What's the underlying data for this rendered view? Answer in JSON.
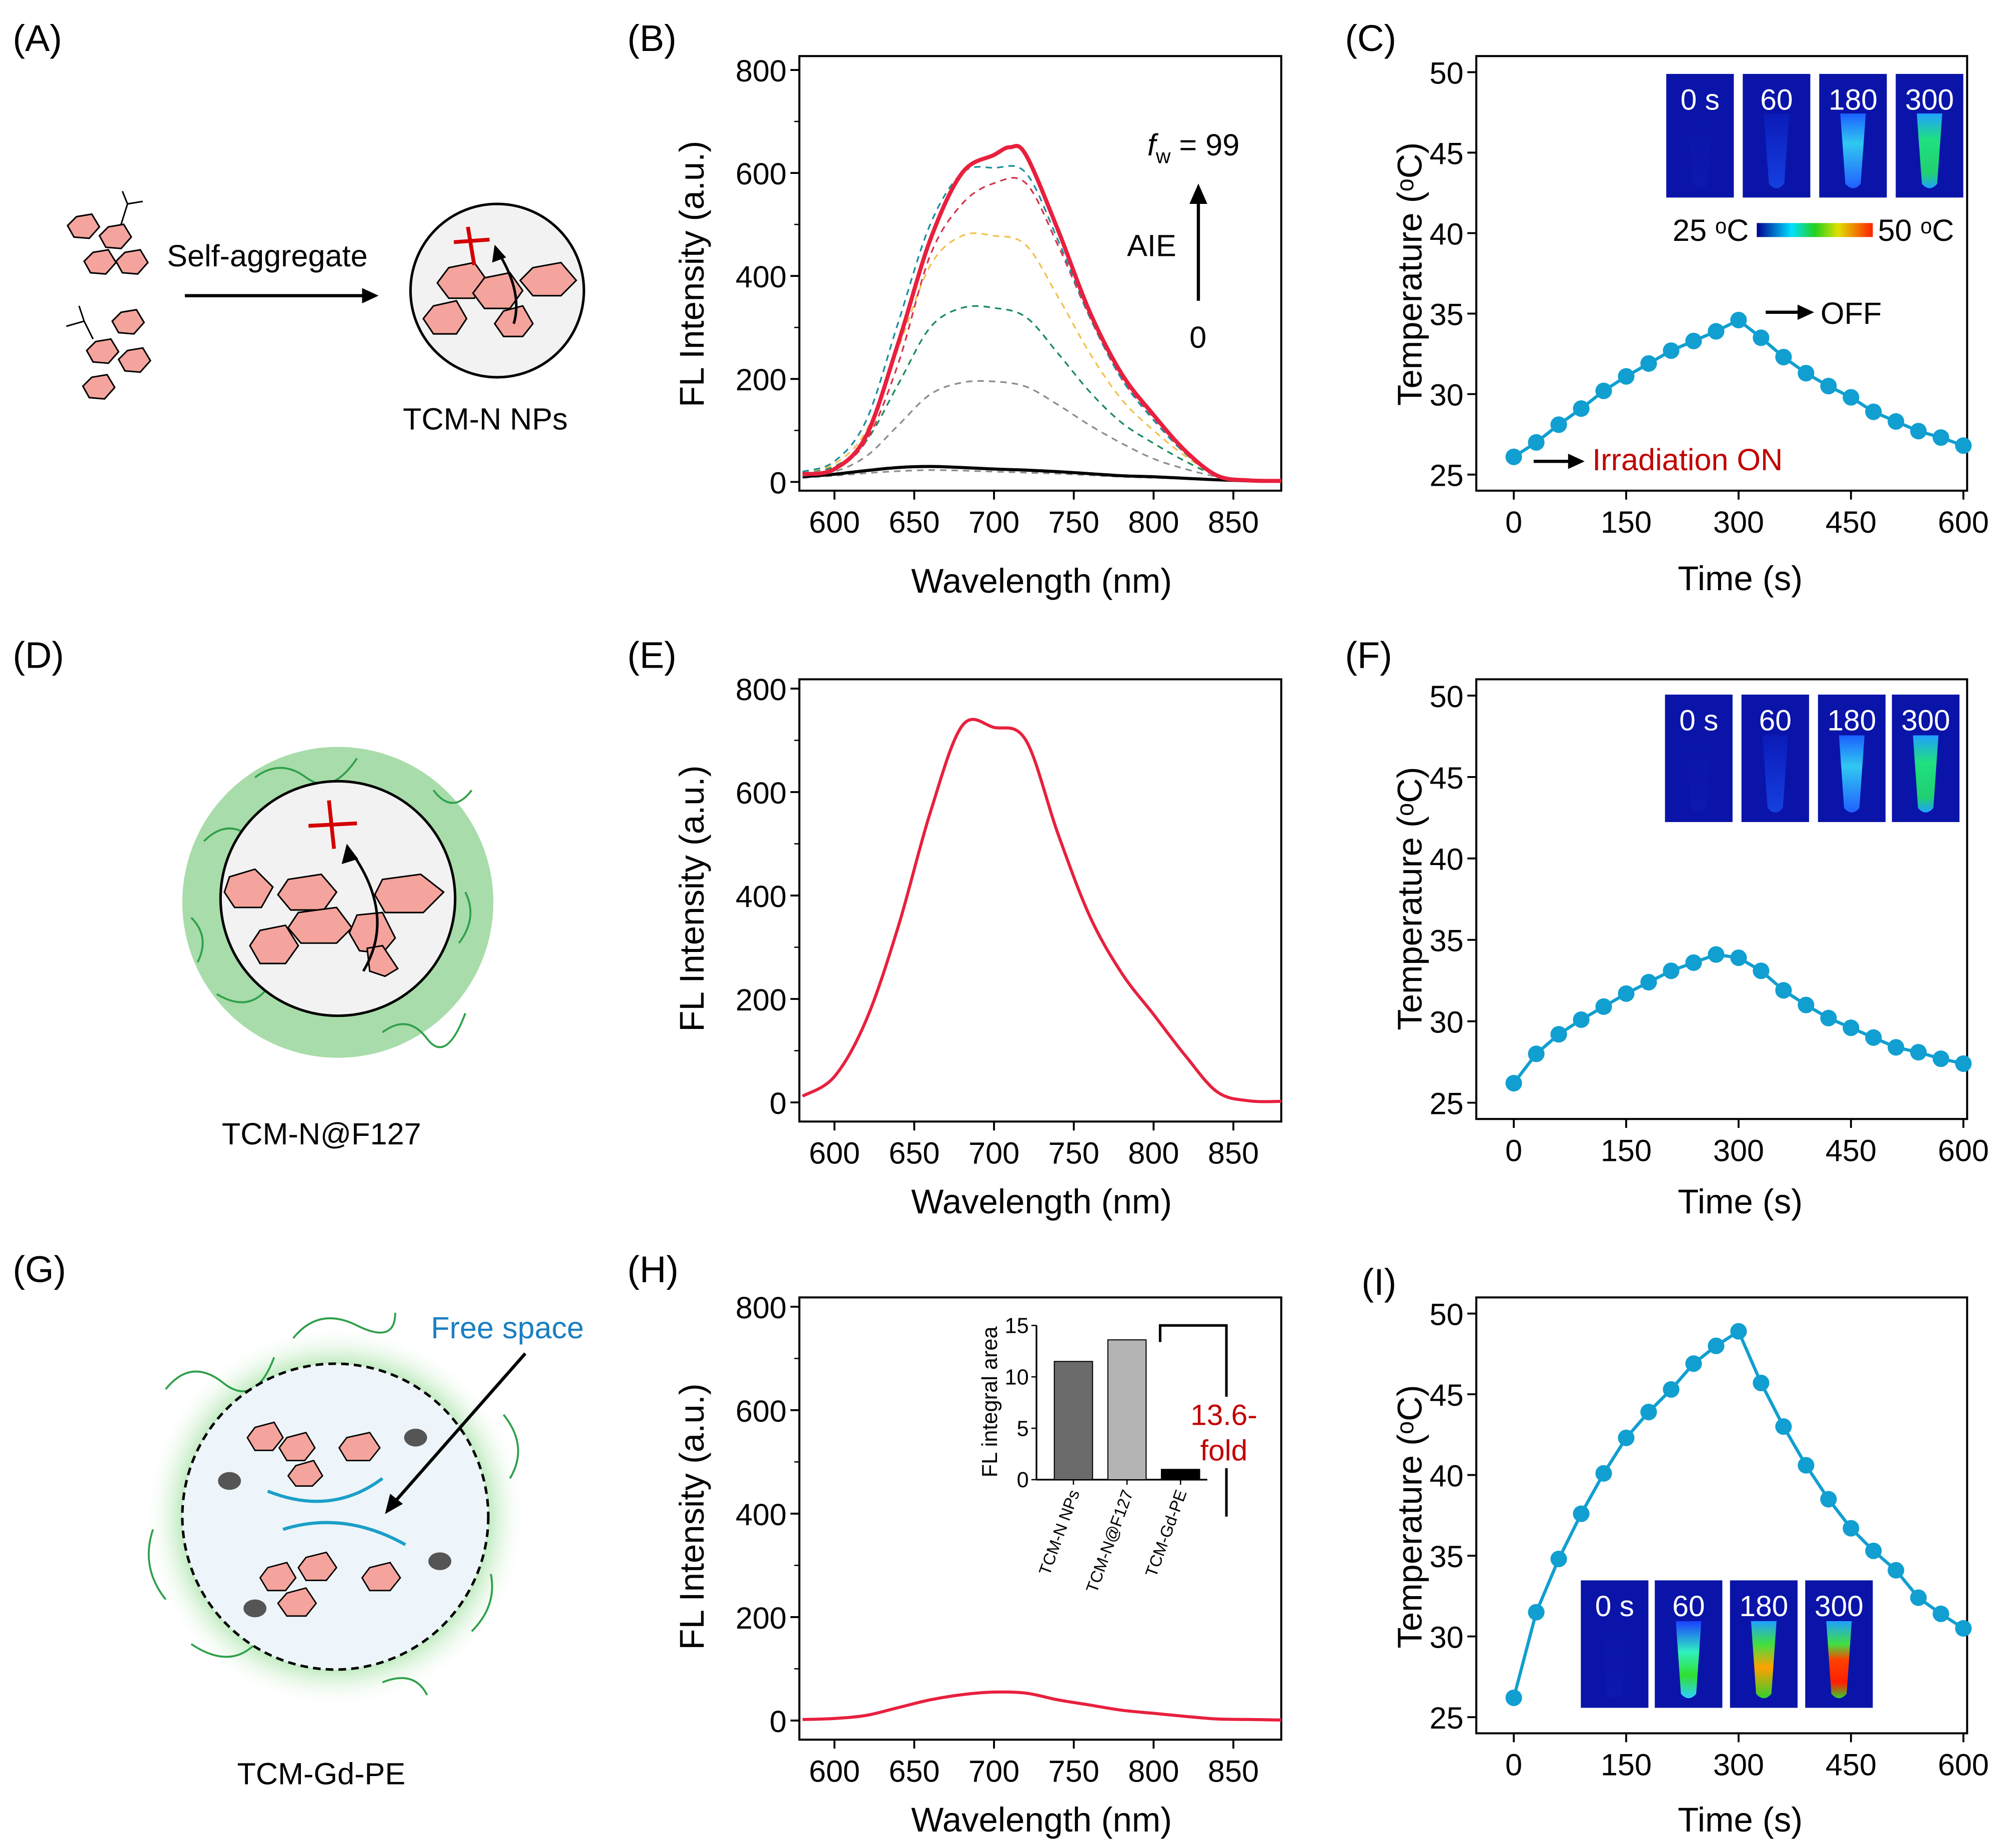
{
  "panels": {
    "A": {
      "label": "(A)",
      "arrow_text": "Self-aggregate",
      "caption": "TCM-N NPs"
    },
    "B": {
      "label": "(B)",
      "fw_symbol": "f",
      "fw_sub": "w",
      "fw_value": " = 99",
      "aie": "AIE",
      "zero": "0"
    },
    "C": {
      "label": "(C)",
      "images": [
        "0 s",
        "60",
        "180",
        "300"
      ],
      "colorbar_min": "25 ᵒC",
      "colorbar_max": "50 ᵒC",
      "off": "OFF",
      "on": "Irradiation ON",
      "on_color": "#c00000"
    },
    "D": {
      "label": "(D)",
      "caption": "TCM-N@F127"
    },
    "E": {
      "label": "(E)"
    },
    "F": {
      "label": "(F)",
      "images": [
        "0 s",
        "60",
        "180",
        "300"
      ]
    },
    "G": {
      "label": "(G)",
      "caption": "TCM-Gd-PE",
      "free_space": "Free space",
      "free_space_color": "#1a7fc1"
    },
    "H": {
      "label": "(H)",
      "fold_line1": "13.6-",
      "fold_line2": "fold",
      "fold_color": "#c00000"
    },
    "I": {
      "label": "(I)",
      "images": [
        "0 s",
        "60",
        "180",
        "300"
      ]
    }
  },
  "chart_data": [
    {
      "id": "B",
      "type": "line",
      "xlabel": "Wavelength (nm)",
      "ylabel": "FL Intensity (a.u.)",
      "xlim": [
        578,
        880
      ],
      "ylim": [
        -17,
        827
      ],
      "xticks": [
        600,
        650,
        700,
        750,
        800,
        850
      ],
      "yticks": [
        0,
        200,
        400,
        600,
        800
      ],
      "grid": false,
      "series": [
        {
          "color": "#8c8c8c",
          "dash": true,
          "x": [
            580,
            600,
            620,
            640,
            660,
            680,
            700,
            720,
            740,
            760,
            780,
            800,
            820,
            840,
            860,
            880
          ],
          "y": [
            8,
            12,
            17,
            21,
            23,
            22,
            20,
            18,
            16,
            13,
            10,
            8,
            6,
            3,
            2,
            1
          ]
        },
        {
          "color": "#000000",
          "dash": false,
          "x": [
            580,
            600,
            620,
            640,
            660,
            680,
            700,
            720,
            740,
            760,
            780,
            800,
            820,
            840,
            860,
            880
          ],
          "y": [
            10,
            15,
            22,
            28,
            30,
            28,
            25,
            23,
            20,
            16,
            12,
            10,
            7,
            4,
            2,
            1
          ]
        },
        {
          "color": "#8c8c8c",
          "dash": true,
          "x": [
            580,
            600,
            620,
            640,
            660,
            680,
            700,
            720,
            740,
            760,
            780,
            800,
            820,
            840,
            860,
            880
          ],
          "y": [
            12,
            20,
            50,
            110,
            170,
            193,
            195,
            185,
            150,
            110,
            75,
            45,
            25,
            10,
            3,
            2
          ]
        },
        {
          "color": "#1a8a5a",
          "dash": true,
          "x": [
            580,
            600,
            620,
            640,
            660,
            680,
            700,
            720,
            740,
            760,
            780,
            800,
            820,
            840,
            860,
            880
          ],
          "y": [
            20,
            30,
            80,
            190,
            300,
            338,
            338,
            320,
            250,
            175,
            115,
            75,
            40,
            12,
            3,
            2
          ]
        },
        {
          "color": "#f2c14e",
          "dash": true,
          "x": [
            580,
            600,
            620,
            640,
            660,
            680,
            700,
            720,
            740,
            760,
            780,
            800,
            820,
            840,
            860,
            880
          ],
          "y": [
            20,
            35,
            100,
            260,
            420,
            478,
            478,
            460,
            360,
            250,
            160,
            100,
            50,
            12,
            3,
            2
          ]
        },
        {
          "color": "#d6334a",
          "dash": true,
          "x": [
            580,
            600,
            620,
            640,
            660,
            680,
            700,
            720,
            740,
            760,
            780,
            800,
            820,
            840,
            860,
            880
          ],
          "y": [
            15,
            25,
            80,
            230,
            440,
            540,
            580,
            580,
            460,
            320,
            200,
            125,
            55,
            12,
            3,
            2
          ]
        },
        {
          "color": "#1a8fa0",
          "dash": true,
          "x": [
            580,
            600,
            620,
            640,
            660,
            680,
            700,
            720,
            740,
            760,
            780,
            800,
            820,
            840,
            860,
            880
          ],
          "y": [
            20,
            40,
            120,
            310,
            500,
            600,
            610,
            600,
            470,
            320,
            200,
            120,
            55,
            12,
            3,
            2
          ]
        },
        {
          "color": "#e8203e",
          "dash": false,
          "width": 3.2,
          "x": [
            580,
            600,
            620,
            640,
            660,
            680,
            700,
            710,
            720,
            740,
            760,
            780,
            800,
            820,
            840,
            860,
            880
          ],
          "y": [
            15,
            25,
            90,
            270,
            470,
            600,
            635,
            650,
            635,
            490,
            330,
            210,
            130,
            60,
            12,
            3,
            2
          ]
        }
      ]
    },
    {
      "id": "C",
      "type": "line",
      "xlabel": "Time (s)",
      "ylabel": "Temperature (ᵒC)",
      "xlim": [
        -50,
        605
      ],
      "ylim": [
        24,
        51
      ],
      "xticks": [
        0,
        150,
        300,
        450,
        600
      ],
      "yticks": [
        25,
        30,
        35,
        40,
        45,
        50
      ],
      "grid": false,
      "markers": true,
      "series": [
        {
          "color": "#109fd0",
          "x": [
            0,
            30,
            60,
            90,
            120,
            150,
            180,
            210,
            240,
            270,
            300,
            330,
            360,
            390,
            420,
            450,
            480,
            510,
            540,
            570,
            600
          ],
          "y": [
            26.1,
            27.0,
            28.1,
            29.1,
            30.2,
            31.1,
            31.9,
            32.7,
            33.3,
            33.9,
            34.6,
            33.5,
            32.3,
            31.3,
            30.5,
            29.8,
            28.9,
            28.3,
            27.7,
            27.3,
            26.8
          ]
        }
      ]
    },
    {
      "id": "E",
      "type": "line",
      "xlabel": "Wavelength (nm)",
      "ylabel": "FL Intensity (a.u.)",
      "xlim": [
        578,
        880
      ],
      "ylim": [
        -37,
        818
      ],
      "xticks": [
        600,
        650,
        700,
        750,
        800,
        850
      ],
      "yticks": [
        0,
        200,
        400,
        600,
        800
      ],
      "grid": false,
      "series": [
        {
          "color": "#e8203e",
          "dash": false,
          "x": [
            580,
            600,
            620,
            640,
            660,
            680,
            700,
            720,
            740,
            760,
            780,
            800,
            820,
            840,
            860,
            880
          ],
          "y": [
            12,
            50,
            160,
            340,
            560,
            728,
            725,
            700,
            520,
            360,
            250,
            170,
            90,
            20,
            3,
            2
          ]
        }
      ]
    },
    {
      "id": "F",
      "type": "line",
      "xlabel": "Time (s)",
      "ylabel": "Temperature (ᵒC)",
      "xlim": [
        -50,
        605
      ],
      "ylim": [
        24,
        51
      ],
      "xticks": [
        0,
        150,
        300,
        450,
        600
      ],
      "yticks": [
        25,
        30,
        35,
        40,
        45,
        50
      ],
      "grid": false,
      "markers": true,
      "series": [
        {
          "color": "#109fd0",
          "x": [
            0,
            30,
            60,
            90,
            120,
            150,
            180,
            210,
            240,
            270,
            300,
            330,
            360,
            390,
            420,
            450,
            480,
            510,
            540,
            570,
            600
          ],
          "y": [
            26.2,
            28.0,
            29.2,
            30.1,
            30.9,
            31.7,
            32.4,
            33.1,
            33.6,
            34.1,
            33.9,
            33.1,
            31.9,
            31.0,
            30.2,
            29.6,
            29.0,
            28.4,
            28.1,
            27.7,
            27.4
          ]
        }
      ]
    },
    {
      "id": "H",
      "type": "line",
      "xlabel": "Wavelength (nm)",
      "ylabel": "FL Intensity (a.u.)",
      "xlim": [
        578,
        880
      ],
      "ylim": [
        -37,
        818
      ],
      "xticks": [
        600,
        650,
        700,
        750,
        800,
        850
      ],
      "yticks": [
        0,
        200,
        400,
        600,
        800
      ],
      "grid": false,
      "series": [
        {
          "color": "#e8203e",
          "dash": false,
          "x": [
            580,
            600,
            620,
            640,
            660,
            680,
            700,
            720,
            740,
            760,
            780,
            800,
            820,
            840,
            860,
            880
          ],
          "y": [
            2,
            4,
            10,
            25,
            40,
            50,
            55,
            53,
            40,
            30,
            20,
            14,
            8,
            3,
            2,
            1
          ]
        }
      ]
    },
    {
      "id": "H-inset",
      "type": "bar",
      "xlabel": "",
      "ylabel": "FL integral area",
      "categories": [
        "TCM-N NPs",
        "TCM-N@F127",
        "TCM-Gd-PE"
      ],
      "values": [
        11.5,
        13.6,
        1.0
      ],
      "colors": [
        "#6b6b6b",
        "#b4b4b4",
        "#000000"
      ],
      "ylim": [
        0,
        15
      ],
      "yticks": [
        0,
        5,
        10,
        15
      ]
    },
    {
      "id": "I",
      "type": "line",
      "xlabel": "Time (s)",
      "ylabel": "Temperature (ᵒC)",
      "xlim": [
        -50,
        605
      ],
      "ylim": [
        24,
        51
      ],
      "xticks": [
        0,
        150,
        300,
        450,
        600
      ],
      "yticks": [
        25,
        30,
        35,
        40,
        45,
        50
      ],
      "grid": false,
      "markers": true,
      "series": [
        {
          "color": "#109fd0",
          "x": [
            0,
            30,
            60,
            90,
            120,
            150,
            180,
            210,
            240,
            270,
            300,
            330,
            360,
            390,
            420,
            450,
            480,
            510,
            540,
            570,
            600
          ],
          "y": [
            26.2,
            31.5,
            34.8,
            37.6,
            40.1,
            42.3,
            43.9,
            45.3,
            46.9,
            48.0,
            48.9,
            45.7,
            43.0,
            40.6,
            38.5,
            36.7,
            35.3,
            34.1,
            32.4,
            31.4,
            30.5
          ]
        }
      ]
    }
  ]
}
